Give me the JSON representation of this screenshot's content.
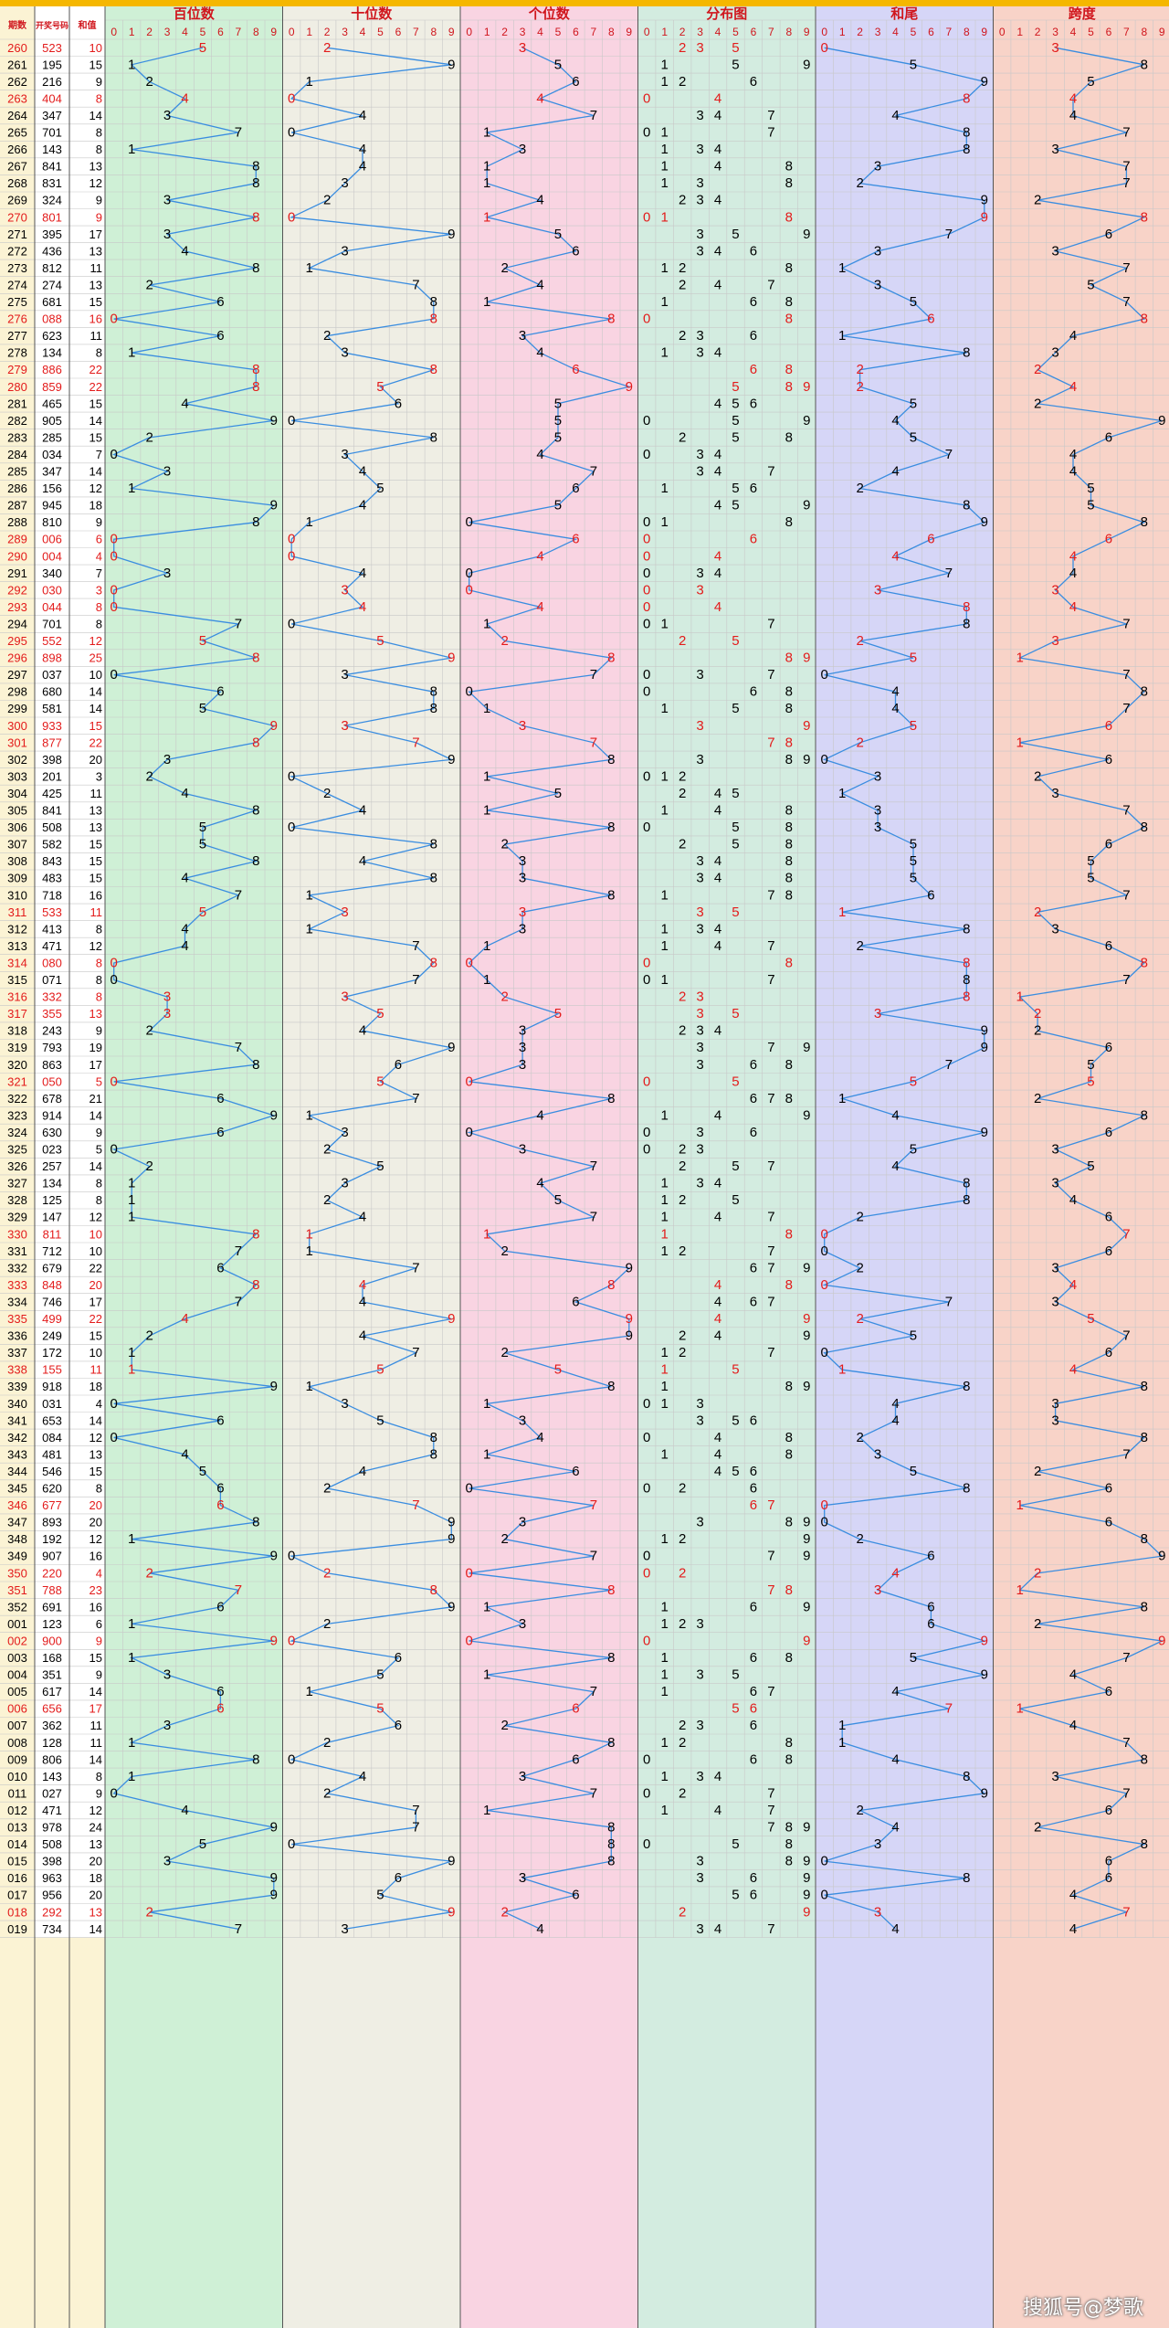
{
  "header": {
    "period_label": "期数",
    "number_label": "开奖号码",
    "sum_label": "和值",
    "sections": [
      "百位数",
      "十位数",
      "个位数",
      "分布图",
      "和尾",
      "跨度"
    ],
    "digits": [
      "0",
      "1",
      "2",
      "3",
      "4",
      "5",
      "6",
      "7",
      "8",
      "9"
    ]
  },
  "colors": {
    "accent_bar": "#f5b700",
    "section_backgrounds": [
      "#cff0d6",
      "#efeee4",
      "#f9d4e2",
      "#d3ece0",
      "#d6d6f7",
      "#f8d3c8"
    ],
    "first_columns_background": "#fbf3d4",
    "trend_line": "#3a8de0",
    "highlight_text": "#e31b1b",
    "normal_text": "#000000",
    "title_text": "#d0161d"
  },
  "watermark": "搜狐号@梦歌",
  "chart_data": {
    "type": "table",
    "title": "",
    "columns": [
      "期数",
      "开奖号码",
      "和值",
      "百位数",
      "十位数",
      "个位数",
      "分布图",
      "和尾",
      "跨度"
    ],
    "rows": [
      {
        "period": "260",
        "number": "523",
        "sum": "10",
        "red": true
      },
      {
        "period": "261",
        "number": "195",
        "sum": "15",
        "red": false
      },
      {
        "period": "262",
        "number": "216",
        "sum": "9",
        "red": false
      },
      {
        "period": "263",
        "number": "404",
        "sum": "8",
        "red": true
      },
      {
        "period": "264",
        "number": "347",
        "sum": "14",
        "red": false
      },
      {
        "period": "265",
        "number": "701",
        "sum": "8",
        "red": false
      },
      {
        "period": "266",
        "number": "143",
        "sum": "8",
        "red": false
      },
      {
        "period": "267",
        "number": "841",
        "sum": "13",
        "red": false
      },
      {
        "period": "268",
        "number": "831",
        "sum": "12",
        "red": false
      },
      {
        "period": "269",
        "number": "324",
        "sum": "9",
        "red": false
      },
      {
        "period": "270",
        "number": "801",
        "sum": "9",
        "red": true
      },
      {
        "period": "271",
        "number": "395",
        "sum": "17",
        "red": false
      },
      {
        "period": "272",
        "number": "436",
        "sum": "13",
        "red": false
      },
      {
        "period": "273",
        "number": "812",
        "sum": "11",
        "red": false
      },
      {
        "period": "274",
        "number": "274",
        "sum": "13",
        "red": false
      },
      {
        "period": "275",
        "number": "681",
        "sum": "15",
        "red": false
      },
      {
        "period": "276",
        "number": "088",
        "sum": "16",
        "red": true
      },
      {
        "period": "277",
        "number": "623",
        "sum": "11",
        "red": false
      },
      {
        "period": "278",
        "number": "134",
        "sum": "8",
        "red": false
      },
      {
        "period": "279",
        "number": "886",
        "sum": "22",
        "red": true
      },
      {
        "period": "280",
        "number": "859",
        "sum": "22",
        "red": true
      },
      {
        "period": "281",
        "number": "465",
        "sum": "15",
        "red": false
      },
      {
        "period": "282",
        "number": "905",
        "sum": "14",
        "red": false
      },
      {
        "period": "283",
        "number": "285",
        "sum": "15",
        "red": false
      },
      {
        "period": "284",
        "number": "034",
        "sum": "7",
        "red": false
      },
      {
        "period": "285",
        "number": "347",
        "sum": "14",
        "red": false
      },
      {
        "period": "286",
        "number": "156",
        "sum": "12",
        "red": false
      },
      {
        "period": "287",
        "number": "945",
        "sum": "18",
        "red": false
      },
      {
        "period": "288",
        "number": "810",
        "sum": "9",
        "red": false
      },
      {
        "period": "289",
        "number": "006",
        "sum": "6",
        "red": true
      },
      {
        "period": "290",
        "number": "004",
        "sum": "4",
        "red": true
      },
      {
        "period": "291",
        "number": "340",
        "sum": "7",
        "red": false
      },
      {
        "period": "292",
        "number": "030",
        "sum": "3",
        "red": true
      },
      {
        "period": "293",
        "number": "044",
        "sum": "8",
        "red": true
      },
      {
        "period": "294",
        "number": "701",
        "sum": "8",
        "red": false
      },
      {
        "period": "295",
        "number": "552",
        "sum": "12",
        "red": true
      },
      {
        "period": "296",
        "number": "898",
        "sum": "25",
        "red": true
      },
      {
        "period": "297",
        "number": "037",
        "sum": "10",
        "red": false
      },
      {
        "period": "298",
        "number": "680",
        "sum": "14",
        "red": false
      },
      {
        "period": "299",
        "number": "581",
        "sum": "14",
        "red": false
      },
      {
        "period": "300",
        "number": "933",
        "sum": "15",
        "red": true
      },
      {
        "period": "301",
        "number": "877",
        "sum": "22",
        "red": true
      },
      {
        "period": "302",
        "number": "398",
        "sum": "20",
        "red": false
      },
      {
        "period": "303",
        "number": "201",
        "sum": "3",
        "red": false
      },
      {
        "period": "304",
        "number": "425",
        "sum": "11",
        "red": false
      },
      {
        "period": "305",
        "number": "841",
        "sum": "13",
        "red": false
      },
      {
        "period": "306",
        "number": "508",
        "sum": "13",
        "red": false
      },
      {
        "period": "307",
        "number": "582",
        "sum": "15",
        "red": false
      },
      {
        "period": "308",
        "number": "843",
        "sum": "15",
        "red": false
      },
      {
        "period": "309",
        "number": "483",
        "sum": "15",
        "red": false
      },
      {
        "period": "310",
        "number": "718",
        "sum": "16",
        "red": false
      },
      {
        "period": "311",
        "number": "533",
        "sum": "11",
        "red": true
      },
      {
        "period": "312",
        "number": "413",
        "sum": "8",
        "red": false
      },
      {
        "period": "313",
        "number": "471",
        "sum": "12",
        "red": false
      },
      {
        "period": "314",
        "number": "080",
        "sum": "8",
        "red": true
      },
      {
        "period": "315",
        "number": "071",
        "sum": "8",
        "red": false
      },
      {
        "period": "316",
        "number": "332",
        "sum": "8",
        "red": true
      },
      {
        "period": "317",
        "number": "355",
        "sum": "13",
        "red": true
      },
      {
        "period": "318",
        "number": "243",
        "sum": "9",
        "red": false
      },
      {
        "period": "319",
        "number": "793",
        "sum": "19",
        "red": false
      },
      {
        "period": "320",
        "number": "863",
        "sum": "17",
        "red": false
      },
      {
        "period": "321",
        "number": "050",
        "sum": "5",
        "red": true
      },
      {
        "period": "322",
        "number": "678",
        "sum": "21",
        "red": false
      },
      {
        "period": "323",
        "number": "914",
        "sum": "14",
        "red": false
      },
      {
        "period": "324",
        "number": "630",
        "sum": "9",
        "red": false
      },
      {
        "period": "325",
        "number": "023",
        "sum": "5",
        "red": false
      },
      {
        "period": "326",
        "number": "257",
        "sum": "14",
        "red": false
      },
      {
        "period": "327",
        "number": "134",
        "sum": "8",
        "red": false
      },
      {
        "period": "328",
        "number": "125",
        "sum": "8",
        "red": false
      },
      {
        "period": "329",
        "number": "147",
        "sum": "12",
        "red": false
      },
      {
        "period": "330",
        "number": "811",
        "sum": "10",
        "red": true
      },
      {
        "period": "331",
        "number": "712",
        "sum": "10",
        "red": false
      },
      {
        "period": "332",
        "number": "679",
        "sum": "22",
        "red": false
      },
      {
        "period": "333",
        "number": "848",
        "sum": "20",
        "red": true
      },
      {
        "period": "334",
        "number": "746",
        "sum": "17",
        "red": false
      },
      {
        "period": "335",
        "number": "499",
        "sum": "22",
        "red": true
      },
      {
        "period": "336",
        "number": "249",
        "sum": "15",
        "red": false
      },
      {
        "period": "337",
        "number": "172",
        "sum": "10",
        "red": false
      },
      {
        "period": "338",
        "number": "155",
        "sum": "11",
        "red": true
      },
      {
        "period": "339",
        "number": "918",
        "sum": "18",
        "red": false
      },
      {
        "period": "340",
        "number": "031",
        "sum": "4",
        "red": false
      },
      {
        "period": "341",
        "number": "653",
        "sum": "14",
        "red": false
      },
      {
        "period": "342",
        "number": "084",
        "sum": "12",
        "red": false
      },
      {
        "period": "343",
        "number": "481",
        "sum": "13",
        "red": false
      },
      {
        "period": "344",
        "number": "546",
        "sum": "15",
        "red": false
      },
      {
        "period": "345",
        "number": "620",
        "sum": "8",
        "red": false
      },
      {
        "period": "346",
        "number": "677",
        "sum": "20",
        "red": true
      },
      {
        "period": "347",
        "number": "893",
        "sum": "20",
        "red": false
      },
      {
        "period": "348",
        "number": "192",
        "sum": "12",
        "red": false
      },
      {
        "period": "349",
        "number": "907",
        "sum": "16",
        "red": false
      },
      {
        "period": "350",
        "number": "220",
        "sum": "4",
        "red": true
      },
      {
        "period": "351",
        "number": "788",
        "sum": "23",
        "red": true
      },
      {
        "period": "352",
        "number": "691",
        "sum": "16",
        "red": false
      },
      {
        "period": "001",
        "number": "123",
        "sum": "6",
        "red": false
      },
      {
        "period": "002",
        "number": "900",
        "sum": "9",
        "red": true
      },
      {
        "period": "003",
        "number": "168",
        "sum": "15",
        "red": false
      },
      {
        "period": "004",
        "number": "351",
        "sum": "9",
        "red": false
      },
      {
        "period": "005",
        "number": "617",
        "sum": "14",
        "red": false
      },
      {
        "period": "006",
        "number": "656",
        "sum": "17",
        "red": true
      },
      {
        "period": "007",
        "number": "362",
        "sum": "11",
        "red": false
      },
      {
        "period": "008",
        "number": "128",
        "sum": "11",
        "red": false
      },
      {
        "period": "009",
        "number": "806",
        "sum": "14",
        "red": false
      },
      {
        "period": "010",
        "number": "143",
        "sum": "8",
        "red": false
      },
      {
        "period": "011",
        "number": "027",
        "sum": "9",
        "red": false
      },
      {
        "period": "012",
        "number": "471",
        "sum": "12",
        "red": false
      },
      {
        "period": "013",
        "number": "978",
        "sum": "24",
        "red": false
      },
      {
        "period": "014",
        "number": "508",
        "sum": "13",
        "red": false
      },
      {
        "period": "015",
        "number": "398",
        "sum": "20",
        "red": false
      },
      {
        "period": "016",
        "number": "963",
        "sum": "18",
        "red": false
      },
      {
        "period": "017",
        "number": "956",
        "sum": "20",
        "red": false
      },
      {
        "period": "018",
        "number": "292",
        "sum": "13",
        "red": true
      },
      {
        "period": "019",
        "number": "734",
        "sum": "14",
        "red": false
      }
    ]
  }
}
